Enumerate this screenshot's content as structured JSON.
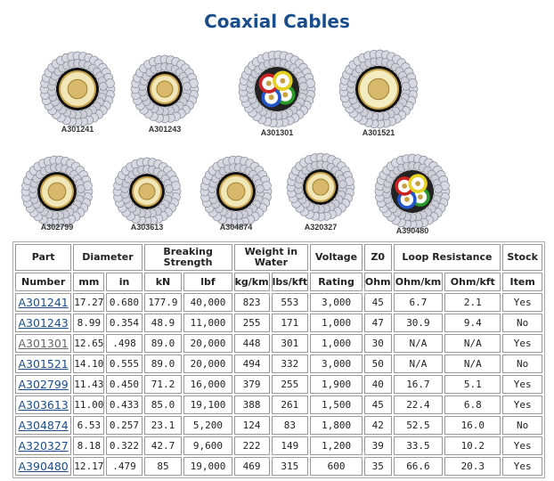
{
  "title": "Coaxial Cables",
  "cables": [
    {
      "label": "A301241",
      "type": "coax-gold"
    },
    {
      "label": "A301243",
      "type": "coax-gold"
    },
    {
      "label": "A301301",
      "type": "multi"
    },
    {
      "label": "A301521",
      "type": "coax-cream"
    },
    {
      "label": "A302799",
      "type": "coax-gold"
    },
    {
      "label": "A303613",
      "type": "coax-gold"
    },
    {
      "label": "A304874",
      "type": "coax-gold"
    },
    {
      "label": "A320327",
      "type": "coax-gold"
    },
    {
      "label": "A390480",
      "type": "multi"
    }
  ],
  "table": {
    "group_headers": [
      "Part",
      "Diameter",
      "Breaking Strength",
      "Weight in Water",
      "Voltage",
      "Z0",
      "Loop Resistance",
      "Stock"
    ],
    "sub_headers": [
      "Number",
      "mm",
      "in",
      "kN",
      "lbf",
      "kg/km",
      "lbs/kft",
      "Rating",
      "Ohm",
      "Ohm/km",
      "Ohm/kft",
      "Item"
    ],
    "rows": [
      [
        "A301241",
        "17.27",
        "0.680",
        "177.9",
        "40,000",
        "823",
        "553",
        "3,000",
        "45",
        "6.7",
        "2.1",
        "Yes"
      ],
      [
        "A301243",
        "8.99",
        "0.354",
        "48.9",
        "11,000",
        "255",
        "171",
        "1,000",
        "47",
        "30.9",
        "9.4",
        "No"
      ],
      [
        "A301301",
        "12.65",
        ".498",
        "89.0",
        "20,000",
        "448",
        "301",
        "1,000",
        "30",
        "N/A",
        "N/A",
        "Yes"
      ],
      [
        "A301521",
        "14.10",
        "0.555",
        "89.0",
        "20,000",
        "494",
        "332",
        "3,000",
        "50",
        "N/A",
        "N/A",
        "No"
      ],
      [
        "A302799",
        "11.43",
        "0.450",
        "71.2",
        "16,000",
        "379",
        "255",
        "1,900",
        "40",
        "16.7",
        "5.1",
        "Yes"
      ],
      [
        "A303613",
        "11.00",
        "0.433",
        "85.0",
        "19,100",
        "388",
        "261",
        "1,500",
        "45",
        "22.4",
        "6.8",
        "Yes"
      ],
      [
        "A304874",
        "6.53",
        "0.257",
        "23.1",
        "5,200",
        "124",
        "83",
        "1,800",
        "42",
        "52.5",
        "16.0",
        "No"
      ],
      [
        "A320327",
        "8.18",
        "0.322",
        "42.7",
        "9,600",
        "222",
        "149",
        "1,200",
        "39",
        "33.5",
        "10.2",
        "Yes"
      ],
      [
        "A390480",
        "12.17",
        ".479",
        "85",
        "19,000",
        "469",
        "315",
        "600",
        "35",
        "66.6",
        "20.3",
        "Yes"
      ]
    ]
  }
}
